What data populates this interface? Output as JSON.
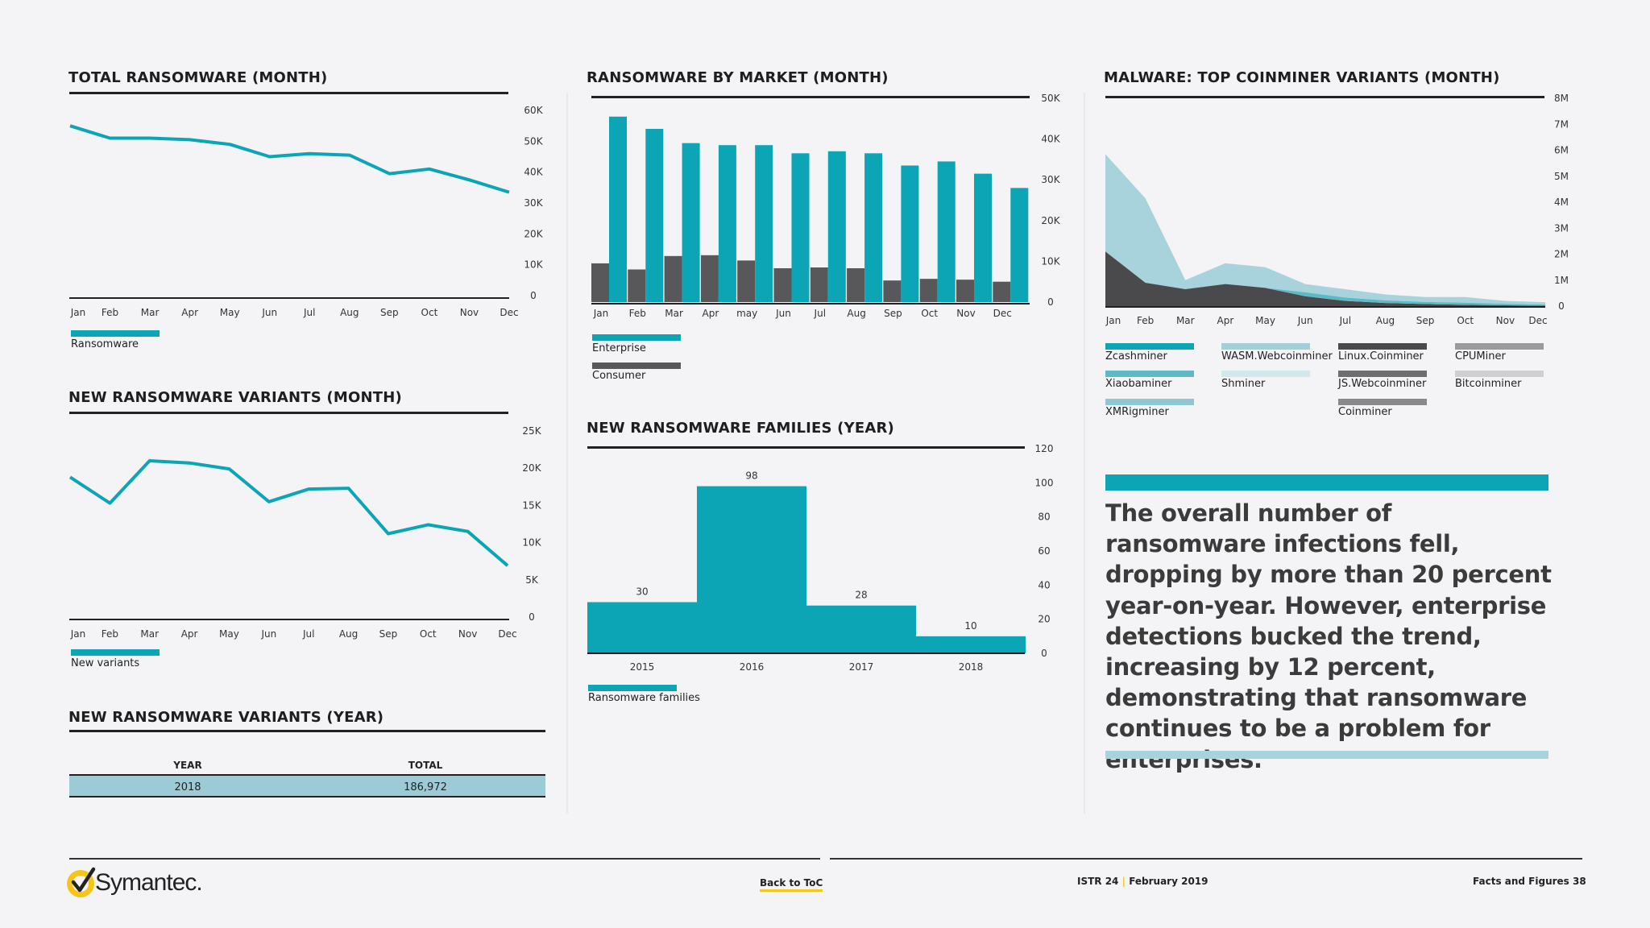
{
  "months": [
    "Jan",
    "Feb",
    "Mar",
    "Apr",
    "May",
    "Jun",
    "Jul",
    "Aug",
    "Sep",
    "Oct",
    "Nov",
    "Dec"
  ],
  "chart_data": [
    {
      "id": "total-ransomware-month",
      "type": "line",
      "title": "TOTAL RANSOMWARE (MONTH)",
      "categories": [
        "Jan",
        "Feb",
        "Mar",
        "Apr",
        "May",
        "Jun",
        "Jul",
        "Aug",
        "Sep",
        "Oct",
        "Nov",
        "Dec"
      ],
      "ylim": [
        0,
        60000
      ],
      "yticks": [
        "0",
        "10K",
        "20K",
        "30K",
        "40K",
        "50K",
        "60K"
      ],
      "series": [
        {
          "name": "Ransomware",
          "color": "#0ba5b5",
          "values": [
            55000,
            51000,
            51000,
            50500,
            49000,
            45000,
            46000,
            45500,
            39500,
            41000,
            37500,
            33500
          ]
        }
      ]
    },
    {
      "id": "ransomware-by-market-month",
      "type": "bar",
      "title": "RANSOMWARE BY MARKET (MONTH)",
      "categories": [
        "Jan",
        "Feb",
        "Mar",
        "Apr",
        "may",
        "Jun",
        "Jul",
        "Aug",
        "Sep",
        "Oct",
        "Nov",
        "Dec"
      ],
      "ylim": [
        0,
        50000
      ],
      "yticks": [
        "0",
        "10K",
        "20K",
        "30K",
        "40K",
        "50K"
      ],
      "series": [
        {
          "name": "Consumer",
          "color": "#58585a",
          "values": [
            9500,
            8000,
            11300,
            11500,
            10200,
            8300,
            8500,
            8300,
            5300,
            5700,
            5500,
            5000
          ]
        },
        {
          "name": "Enterprise",
          "color": "#0ba5b5",
          "values": [
            45500,
            42500,
            39000,
            38500,
            38500,
            36500,
            37000,
            36500,
            33500,
            34500,
            31500,
            28000
          ]
        }
      ]
    },
    {
      "id": "coinminer-variants-month",
      "type": "area",
      "title": "MALWARE: TOP COINMINER VARIANTS (MONTH)",
      "categories": [
        "Jan",
        "Feb",
        "Mar",
        "Apr",
        "May",
        "Jun",
        "Jul",
        "Aug",
        "Sep",
        "Oct",
        "Nov",
        "Dec"
      ],
      "ylim": [
        0,
        8000000
      ],
      "yticks": [
        "0",
        "1M",
        "2M",
        "3M",
        "4M",
        "5M",
        "6M",
        "7M",
        "8M"
      ],
      "stacked": true,
      "series": [
        {
          "name": "Zcashminer",
          "color": "#0ba5b5",
          "values": [
            0,
            0,
            0,
            0,
            0,
            0,
            0,
            0,
            0,
            0,
            0,
            0
          ]
        },
        {
          "name": "WASM.Webcoinminer",
          "color": "#a3cfd9",
          "values": [
            0,
            0,
            0,
            0,
            0,
            0,
            0,
            0,
            0,
            0,
            0,
            0
          ]
        },
        {
          "name": "Linux.Coinminer",
          "color": "#4a4a4c",
          "values": [
            2100000,
            900000,
            650000,
            850000,
            700000,
            380000,
            200000,
            120000,
            80000,
            50000,
            30000,
            15000
          ]
        },
        {
          "name": "CPUMiner",
          "color": "#9a9a9c",
          "values": [
            0,
            0,
            0,
            0,
            0,
            0,
            0,
            0,
            0,
            0,
            0,
            0
          ]
        },
        {
          "name": "Xiaobaminer",
          "color": "#5db9c4",
          "values": [
            0,
            0,
            0,
            0,
            0,
            150000,
            130000,
            100000,
            80000,
            80000,
            60000,
            40000
          ]
        },
        {
          "name": "Shminer",
          "color": "#d2e8ec",
          "values": [
            0,
            0,
            0,
            0,
            0,
            0,
            0,
            0,
            0,
            0,
            0,
            0
          ]
        },
        {
          "name": "JS.Webcoinminer",
          "color": "#6e6e70",
          "values": [
            0,
            0,
            0,
            0,
            0,
            0,
            0,
            0,
            0,
            0,
            0,
            0
          ]
        },
        {
          "name": "Bitcoinminer",
          "color": "#cfcfd1",
          "values": [
            0,
            0,
            0,
            0,
            0,
            0,
            0,
            0,
            0,
            0,
            0,
            0
          ]
        },
        {
          "name": "XMRigminer",
          "color": "#8ec7d1",
          "values": [
            0,
            0,
            0,
            0,
            0,
            0,
            0,
            0,
            0,
            0,
            0,
            0
          ]
        },
        {
          "name": "Coinminer",
          "color": "#8a8a8c",
          "values": [
            0,
            0,
            0,
            0,
            0,
            0,
            0,
            0,
            0,
            0,
            0,
            0
          ]
        }
      ],
      "coinhive_top": [
        5850000,
        4150000,
        1000000,
        1650000,
        1500000,
        850000,
        650000,
        450000,
        350000,
        350000,
        200000,
        150000
      ]
    },
    {
      "id": "new-ransomware-variants-month",
      "type": "line",
      "title": "NEW RANSOMWARE VARIANTS (MONTH)",
      "categories": [
        "Jan",
        "Feb",
        "Mar",
        "Apr",
        "May",
        "Jun",
        "Jul",
        "Aug",
        "Sep",
        "Oct",
        "Nov",
        "Dec"
      ],
      "ylim": [
        0,
        25000
      ],
      "yticks": [
        "0",
        "5K",
        "10K",
        "15K",
        "20K",
        "25K"
      ],
      "series": [
        {
          "name": "New variants",
          "color": "#0ba5b5",
          "values": [
            18800,
            15300,
            21000,
            20700,
            19900,
            15500,
            17200,
            17300,
            11200,
            12400,
            11500,
            6900
          ]
        }
      ]
    },
    {
      "id": "new-ransomware-families-year",
      "type": "bar",
      "title": "NEW RANSOMWARE FAMILIES (YEAR)",
      "categories": [
        "2015",
        "2016",
        "2017",
        "2018"
      ],
      "ylim": [
        0,
        120
      ],
      "yticks": [
        "0",
        "20",
        "40",
        "60",
        "80",
        "100",
        "120"
      ],
      "series": [
        {
          "name": "Ransomware families",
          "color": "#0ba5b5",
          "values": [
            30,
            98,
            28,
            10
          ]
        }
      ]
    },
    {
      "id": "new-ransomware-variants-year",
      "type": "table",
      "title": "NEW RANSOMWARE VARIANTS (YEAR)",
      "columns": [
        "YEAR",
        "TOTAL"
      ],
      "rows": [
        [
          "2018",
          "186,972"
        ]
      ]
    }
  ],
  "quote": "The overall number of ransomware infections fell, dropping by more than 20 percent year-on-year. However, enterprise detections bucked the trend, increasing by 12 percent, demonstrating that ransomware continues to be a problem for enterprises.",
  "footer": {
    "brand": "Symantec.",
    "back_link": "Back to ToC",
    "report_a": "ISTR 24",
    "report_sep": "|",
    "report_b": "February 2019",
    "section": "Facts and Figures",
    "page": "38"
  },
  "colors": {
    "teal": "#0ba5b5",
    "gray": "#58585a",
    "light_teal": "#a9d3dc",
    "logo_yellow": "#f5c518"
  }
}
